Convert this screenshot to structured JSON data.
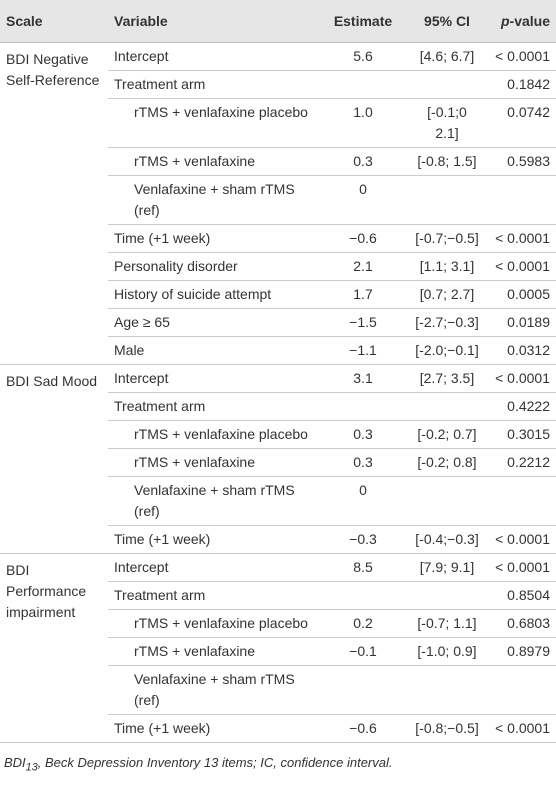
{
  "header": {
    "scale": "Scale",
    "variable": "Variable",
    "estimate": "Estimate",
    "ci": "95% CI",
    "pvalue": {
      "italic": "p",
      "rest": "-value"
    }
  },
  "groups": [
    {
      "scale": "BDI Negative Self-Reference",
      "rows": [
        {
          "variable": "Intercept",
          "estimate": "5.6",
          "ci": "[4.6; 6.7]",
          "p": "< 0.0001"
        },
        {
          "variable": "Treatment arm",
          "p": "0.1842"
        },
        {
          "variable": "rTMS + venlafaxine placebo",
          "sub": true,
          "estimate": "1.0",
          "ci": "[-0.1;0 2.1]",
          "p": "0.0742"
        },
        {
          "variable": "rTMS + venlafaxine",
          "sub": true,
          "estimate": "0.3",
          "ci": "[-0.8; 1.5]",
          "p": "0.5983"
        },
        {
          "variable": "Venlafaxine + sham rTMS (ref)",
          "sub": true,
          "estimate": "0"
        },
        {
          "variable": "Time (+1 week)",
          "estimate": "−0.6",
          "ci": "[-0.7;−0.5]",
          "p": "< 0.0001"
        },
        {
          "variable": "Personality disorder",
          "estimate": "2.1",
          "ci": "[1.1; 3.1]",
          "p": "< 0.0001"
        },
        {
          "variable": "History of suicide attempt",
          "estimate": "1.7",
          "ci": "[0.7; 2.7]",
          "p": "0.0005"
        },
        {
          "variable": "Age ≥ 65",
          "estimate": "−1.5",
          "ci": "[-2.7;−0.3]",
          "p": "0.0189"
        },
        {
          "variable": "Male",
          "estimate": "−1.1",
          "ci": "[-2.0;−0.1]",
          "p": "0.0312"
        }
      ]
    },
    {
      "scale": "BDI Sad Mood",
      "rows": [
        {
          "variable": "Intercept",
          "estimate": "3.1",
          "ci": "[2.7; 3.5]",
          "p": "< 0.0001"
        },
        {
          "variable": "Treatment arm",
          "p": "0.4222"
        },
        {
          "variable": "rTMS + venlafaxine placebo",
          "sub": true,
          "estimate": "0.3",
          "ci": "[-0.2; 0.7]",
          "p": "0.3015"
        },
        {
          "variable": "rTMS + venlafaxine",
          "sub": true,
          "estimate": "0.3",
          "ci": "[-0.2; 0.8]",
          "p": "0.2212"
        },
        {
          "variable": "Venlafaxine + sham rTMS (ref)",
          "sub": true,
          "estimate": "0"
        },
        {
          "variable": "Time (+1 week)",
          "estimate": "−0.3",
          "ci": "[-0.4;−0.3]",
          "p": "< 0.0001"
        }
      ]
    },
    {
      "scale": "BDI Performance impairment",
      "rows": [
        {
          "variable": "Intercept",
          "estimate": "8.5",
          "ci": "[7.9; 9.1]",
          "p": "< 0.0001"
        },
        {
          "variable": "Treatment arm",
          "p": "0.8504"
        },
        {
          "variable": "rTMS + venlafaxine placebo",
          "sub": true,
          "estimate": "0.2",
          "ci": "[-0.7; 1.1]",
          "p": "0.6803"
        },
        {
          "variable": "rTMS + venlafaxine",
          "sub": true,
          "estimate": "−0.1",
          "ci": "[-1.0; 0.9]",
          "p": "0.8979"
        },
        {
          "variable": "Venlafaxine + sham rTMS (ref)",
          "sub": true
        },
        {
          "variable": "Time (+1 week)",
          "estimate": "−0.6",
          "ci": "[-0.8;−0.5]",
          "p": "< 0.0001"
        }
      ]
    }
  ],
  "footnote": {
    "abbr": "BDI",
    "sub": "13",
    "text": ", Beck Depression Inventory 13 items; IC, confidence interval."
  }
}
